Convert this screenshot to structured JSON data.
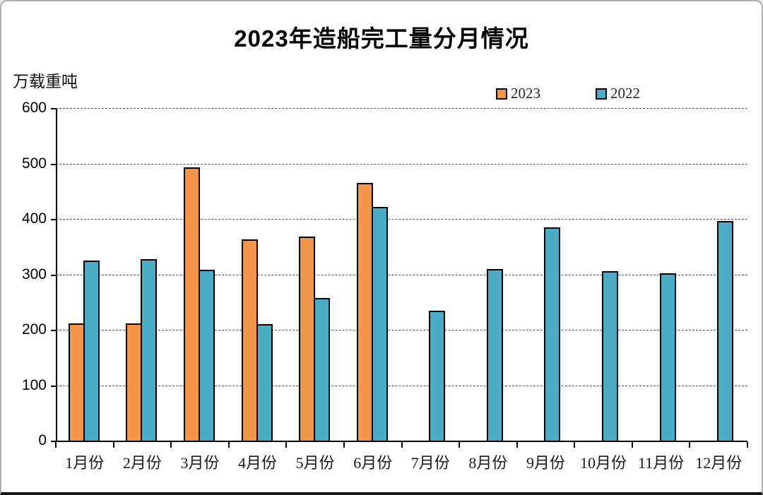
{
  "title": "2023年造船完工量分月情况",
  "y_axis_unit": "万载重吨",
  "colors": {
    "series_2023": "#F4964A",
    "series_2022": "#4BACC6",
    "axis": "#000000",
    "gridline": "#4d4d4d",
    "background": "#ffffff"
  },
  "legend": [
    {
      "label": "2023",
      "color": "#F4964A",
      "marker": "square-icon"
    },
    {
      "label": "2022",
      "color": "#4BACC6",
      "marker": "square-icon"
    }
  ],
  "chart_data": {
    "type": "bar",
    "title": "2023年造船完工量分月情况",
    "ylabel": "万载重吨",
    "xlabel": "",
    "categories": [
      "1月份",
      "2月份",
      "3月份",
      "4月份",
      "5月份",
      "6月份",
      "7月份",
      "8月份",
      "9月份",
      "10月份",
      "11月份",
      "12月份"
    ],
    "series": [
      {
        "name": "2023",
        "color": "#F4964A",
        "values": [
          211,
          211,
          493,
          363,
          368,
          465,
          null,
          null,
          null,
          null,
          null,
          null
        ]
      },
      {
        "name": "2022",
        "color": "#4BACC6",
        "values": [
          325,
          327,
          308,
          210,
          257,
          422,
          234,
          309,
          385,
          306,
          302,
          396
        ]
      }
    ],
    "ylim": [
      0,
      600
    ],
    "yticks": [
      0,
      100,
      200,
      300,
      400,
      500,
      600
    ],
    "ytick_interval": 100,
    "grid": "horizontal-dashed",
    "legend_position": "top-right-above-plot"
  }
}
